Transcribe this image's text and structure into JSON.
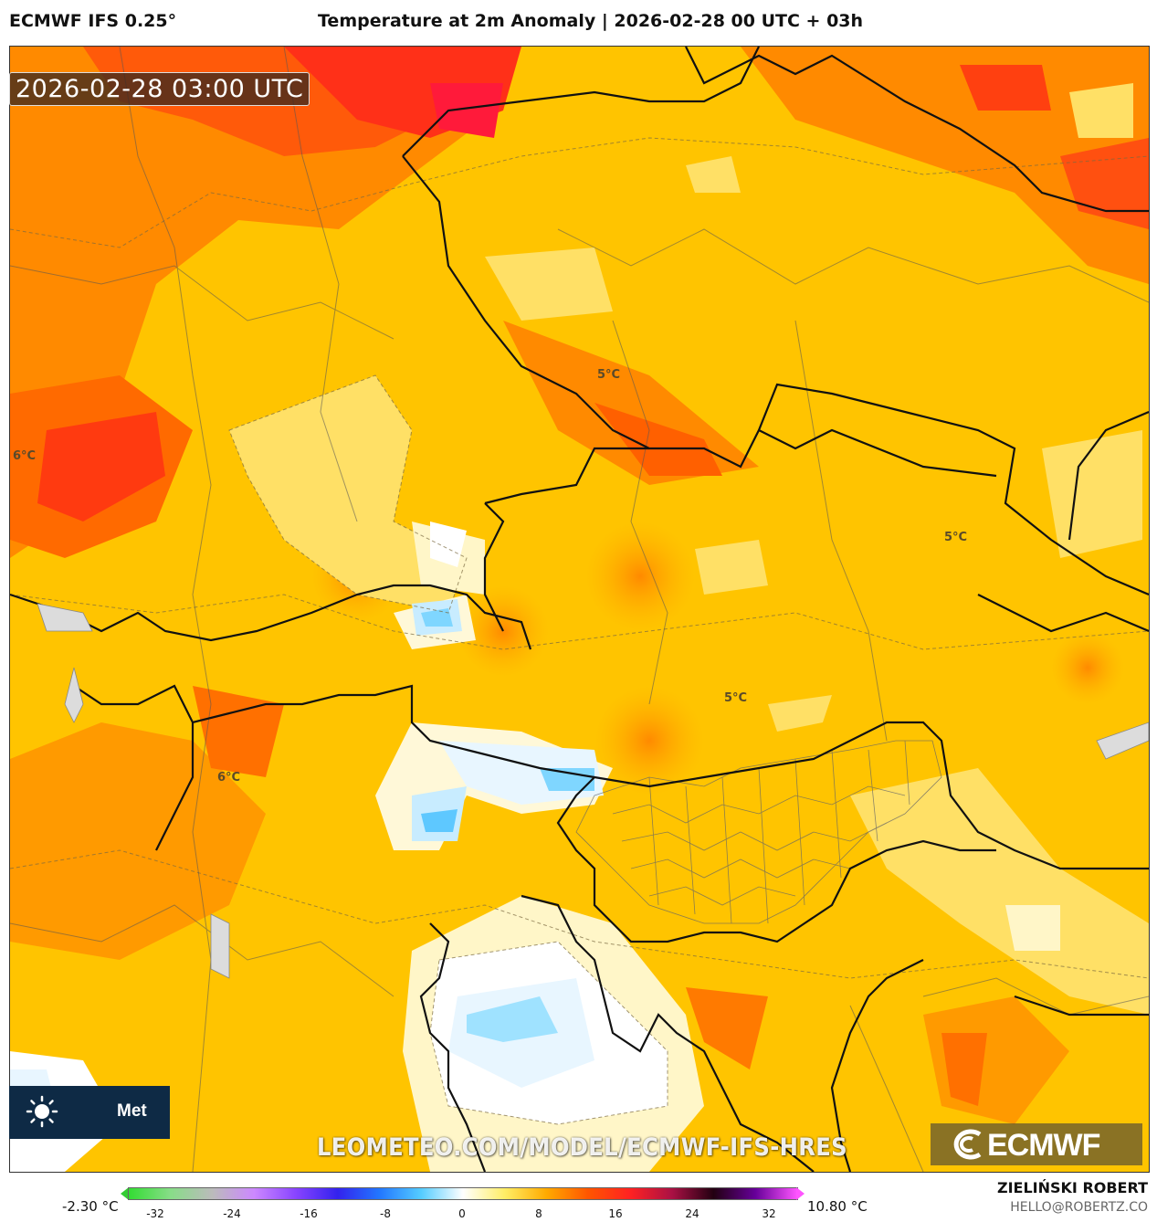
{
  "header": {
    "model": "ECMWF IFS 0.25°",
    "title": "Temperature at 2m Anomaly | 2026-02-28 00 UTC + 03h"
  },
  "map": {
    "timestamp": "2026-02-28 03:00 UTC",
    "watermark": "LEOMETEO.COM/MODEL/ECMWF-IFS-HRES",
    "logo_text": "Met",
    "ecmwf_logo": "ECMWF",
    "contour_labels": [
      "5°C",
      "6°C",
      "5°C",
      "5°C",
      "6°C"
    ],
    "icon": "sun-icon"
  },
  "legend": {
    "min": "-2.30 °C",
    "max": "10.80 °C",
    "ticks": [
      "-32",
      "-24",
      "-16",
      "-8",
      "0",
      "8",
      "16",
      "24",
      "32"
    ],
    "colors": [
      "#33dd33",
      "#88dd88",
      "#bbbbbb",
      "#cc88ff",
      "#8844ff",
      "#3322ee",
      "#2277ff",
      "#55ccff",
      "#ffffff",
      "#ffee66",
      "#ffaa00",
      "#ff5500",
      "#ff2222",
      "#aa1144",
      "#220011",
      "#660099",
      "#ff55ff"
    ]
  },
  "footer": {
    "author": "ZIELIŃSKI ROBERT",
    "email": "HELLO@ROBERTZ.CO"
  }
}
